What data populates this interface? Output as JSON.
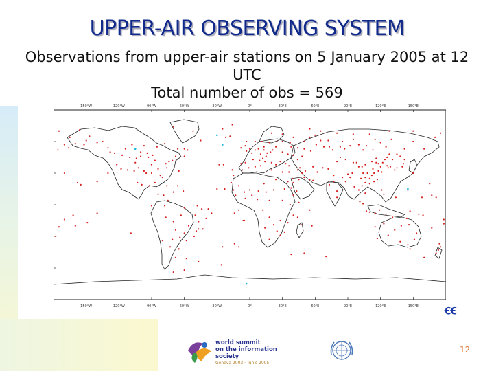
{
  "slide": {
    "title": "UPPER-AIR OBSERVING SYSTEM",
    "subtitle_line1": "Observations from upper-air stations on 5 January 2005 at 12",
    "subtitle_line2": "UTC",
    "subtitle_line3": "Total number of obs = 569",
    "slide_number": "12"
  },
  "map": {
    "projection": "equirectangular",
    "lon_range": [
      -180,
      180
    ],
    "lat_range": [
      -90,
      90
    ],
    "lon_ticks": [
      "150°W",
      "120°W",
      "90°W",
      "60°W",
      "30°W",
      "0°",
      "30°E",
      "60°E",
      "90°E",
      "120°E",
      "150°E"
    ],
    "lat_ticks_left": [
      "60°N",
      "30°N",
      "0°",
      "30°S",
      "60°S"
    ],
    "lat_ticks_right": [
      "60°N",
      "30°N",
      "0°",
      "30°S",
      "60°S"
    ],
    "station_color": "#d62020",
    "highlight_color": "#20b8e0",
    "stations": [
      [
        -150,
        61
      ],
      [
        -165,
        64
      ],
      [
        -156,
        71
      ],
      [
        -147,
        65
      ],
      [
        -135,
        60
      ],
      [
        -124,
        49
      ],
      [
        -122,
        38
      ],
      [
        -118,
        34
      ],
      [
        -112,
        33
      ],
      [
        -105,
        40
      ],
      [
        -97,
        32
      ],
      [
        -95,
        30
      ],
      [
        -90,
        38
      ],
      [
        -87,
        42
      ],
      [
        -84,
        34
      ],
      [
        -80,
        26
      ],
      [
        -77,
        39
      ],
      [
        -74,
        41
      ],
      [
        -71,
        42
      ],
      [
        -68,
        46
      ],
      [
        -100,
        50
      ],
      [
        -94,
        49
      ],
      [
        -114,
        53
      ],
      [
        -108,
        57
      ],
      [
        -97,
        56
      ],
      [
        -85,
        55
      ],
      [
        -78,
        58
      ],
      [
        -66,
        53
      ],
      [
        -60,
        53
      ],
      [
        -117,
        47
      ],
      [
        -110,
        45
      ],
      [
        -104,
        44
      ],
      [
        -100,
        46
      ],
      [
        -93,
        45
      ],
      [
        -89,
        47
      ],
      [
        -102,
        35
      ],
      [
        -106,
        32
      ],
      [
        -90,
        30
      ],
      [
        -82,
        28
      ],
      [
        -76,
        35
      ],
      [
        -99,
        19
      ],
      [
        -103,
        21
      ],
      [
        -92,
        18
      ],
      [
        -87,
        21
      ],
      [
        -84,
        10
      ],
      [
        -79,
        9
      ],
      [
        -76,
        18
      ],
      [
        -66,
        18
      ],
      [
        -61,
        13
      ],
      [
        -70,
        12
      ],
      [
        -75,
        4
      ],
      [
        -60,
        -3
      ],
      [
        -48,
        -1
      ],
      [
        -38,
        -4
      ],
      [
        -35,
        -8
      ],
      [
        -50,
        -10
      ],
      [
        -63,
        -10
      ],
      [
        -78,
        -1
      ],
      [
        -77,
        -12
      ],
      [
        -70,
        -16
      ],
      [
        -47,
        -16
      ],
      [
        -43,
        -23
      ],
      [
        -49,
        -25
      ],
      [
        -51,
        -30
      ],
      [
        -58,
        -34
      ],
      [
        -64,
        -31
      ],
      [
        -68,
        -24
      ],
      [
        -71,
        -33
      ],
      [
        -73,
        -40
      ],
      [
        -68,
        -50
      ],
      [
        -58,
        -51
      ],
      [
        -65,
        -42
      ],
      [
        -60,
        -27
      ],
      [
        -56,
        -20
      ],
      [
        -47,
        -23
      ],
      [
        -40,
        -13
      ],
      [
        -52,
        70
      ],
      [
        -22,
        64
      ],
      [
        -18,
        65
      ],
      [
        -45,
        61
      ],
      [
        -70,
        74
      ],
      [
        -25,
        72
      ],
      [
        -16,
        76
      ],
      [
        -8,
        54
      ],
      [
        -3,
        51
      ],
      [
        0,
        53
      ],
      [
        -4,
        56
      ],
      [
        2,
        49
      ],
      [
        5,
        52
      ],
      [
        8,
        53
      ],
      [
        10,
        48
      ],
      [
        13,
        52
      ],
      [
        16,
        49
      ],
      [
        19,
        50
      ],
      [
        21,
        52
      ],
      [
        24,
        55
      ],
      [
        18,
        59
      ],
      [
        11,
        60
      ],
      [
        5,
        60
      ],
      [
        25,
        60
      ],
      [
        30,
        60
      ],
      [
        13,
        55
      ],
      [
        15,
        46
      ],
      [
        12,
        44
      ],
      [
        -4,
        40
      ],
      [
        -8,
        39
      ],
      [
        3,
        43
      ],
      [
        9,
        42
      ],
      [
        14,
        41
      ],
      [
        20,
        40
      ],
      [
        24,
        38
      ],
      [
        28,
        41
      ],
      [
        33,
        39
      ],
      [
        36,
        37
      ],
      [
        30,
        50
      ],
      [
        35,
        48
      ],
      [
        40,
        47
      ],
      [
        44,
        43
      ],
      [
        38,
        55
      ],
      [
        44,
        54
      ],
      [
        50,
        53
      ],
      [
        48,
        46
      ],
      [
        56,
        51
      ],
      [
        37,
        59
      ],
      [
        50,
        60
      ],
      [
        40,
        64
      ],
      [
        30,
        67
      ],
      [
        20,
        68
      ],
      [
        55,
        64
      ],
      [
        60,
        66
      ],
      [
        65,
        61
      ],
      [
        72,
        61
      ],
      [
        61,
        57
      ],
      [
        68,
        55
      ],
      [
        73,
        55
      ],
      [
        76,
        52
      ],
      [
        83,
        55
      ],
      [
        87,
        53
      ],
      [
        92,
        56
      ],
      [
        85,
        60
      ],
      [
        95,
        62
      ],
      [
        100,
        57
      ],
      [
        104,
        52
      ],
      [
        107,
        56
      ],
      [
        113,
        52
      ],
      [
        115,
        62
      ],
      [
        120,
        59
      ],
      [
        125,
        55
      ],
      [
        130,
        62
      ],
      [
        135,
        48
      ],
      [
        142,
        53
      ],
      [
        150,
        60
      ],
      [
        160,
        53
      ],
      [
        170,
        64
      ],
      [
        110,
        67
      ],
      [
        95,
        67
      ],
      [
        80,
        68
      ],
      [
        128,
        70
      ],
      [
        150,
        70
      ],
      [
        175,
        68
      ],
      [
        65,
        70
      ],
      [
        55,
        72
      ],
      [
        5,
        36
      ],
      [
        -1,
        35
      ],
      [
        10,
        37
      ],
      [
        20,
        33
      ],
      [
        30,
        31
      ],
      [
        -7,
        33
      ],
      [
        -15,
        28
      ],
      [
        -17,
        21
      ],
      [
        -10,
        18
      ],
      [
        0,
        14
      ],
      [
        2,
        9
      ],
      [
        8,
        13
      ],
      [
        -5,
        12
      ],
      [
        15,
        12
      ],
      [
        22,
        14
      ],
      [
        32,
        15
      ],
      [
        38,
        16
      ],
      [
        35,
        22
      ],
      [
        24,
        24
      ],
      [
        13,
        20
      ],
      [
        -15,
        14
      ],
      [
        -13,
        9
      ],
      [
        -4,
        6
      ],
      [
        7,
        5
      ],
      [
        18,
        4
      ],
      [
        30,
        4
      ],
      [
        37,
        0
      ],
      [
        40,
        9
      ],
      [
        45,
        2
      ],
      [
        12,
        -5
      ],
      [
        18,
        -12
      ],
      [
        28,
        -15
      ],
      [
        35,
        -17
      ],
      [
        25,
        -25
      ],
      [
        28,
        -29
      ],
      [
        18,
        -33
      ],
      [
        32,
        -26
      ],
      [
        47,
        -19
      ],
      [
        57,
        -20
      ],
      [
        40,
        -10
      ],
      [
        44,
        -12
      ],
      [
        22,
        -19
      ],
      [
        14,
        -22
      ],
      [
        -6,
        -15
      ],
      [
        -14,
        -8
      ],
      [
        55,
        -5
      ],
      [
        46,
        35
      ],
      [
        51,
        32
      ],
      [
        58,
        36
      ],
      [
        62,
        31
      ],
      [
        67,
        35
      ],
      [
        72,
        34
      ],
      [
        77,
        28
      ],
      [
        73,
        19
      ],
      [
        80,
        13
      ],
      [
        88,
        22
      ],
      [
        77,
        22
      ],
      [
        85,
        26
      ],
      [
        80,
        7
      ],
      [
        92,
        26
      ],
      [
        96,
        17
      ],
      [
        100,
        14
      ],
      [
        103,
        18
      ],
      [
        106,
        11
      ],
      [
        101,
        3
      ],
      [
        104,
        1
      ],
      [
        110,
        -7
      ],
      [
        115,
        -8
      ],
      [
        119,
        -5
      ],
      [
        107,
        -6
      ],
      [
        125,
        -9
      ],
      [
        121,
        14
      ],
      [
        123,
        10
      ],
      [
        114,
        22
      ],
      [
        110,
        20
      ],
      [
        106,
        21
      ],
      [
        117,
        24
      ],
      [
        121,
        31
      ],
      [
        118,
        32
      ],
      [
        114,
        30
      ],
      [
        112,
        28
      ],
      [
        108,
        30
      ],
      [
        104,
        30
      ],
      [
        102,
        25
      ],
      [
        106,
        26
      ],
      [
        110,
        25
      ],
      [
        113,
        34
      ],
      [
        116,
        40
      ],
      [
        118,
        39
      ],
      [
        120,
        36
      ],
      [
        122,
        40
      ],
      [
        124,
        43
      ],
      [
        126,
        45
      ],
      [
        128,
        48
      ],
      [
        116,
        44
      ],
      [
        112,
        41
      ],
      [
        106,
        38
      ],
      [
        103,
        36
      ],
      [
        100,
        36
      ],
      [
        98,
        40
      ],
      [
        95,
        40
      ],
      [
        88,
        43
      ],
      [
        83,
        45
      ],
      [
        80,
        41
      ],
      [
        90,
        29
      ],
      [
        94,
        30
      ],
      [
        126,
        37
      ],
      [
        127,
        35
      ],
      [
        129,
        36
      ],
      [
        133,
        33
      ],
      [
        135,
        35
      ],
      [
        140,
        36
      ],
      [
        141,
        39
      ],
      [
        142,
        43
      ],
      [
        131,
        43
      ],
      [
        138,
        46
      ],
      [
        45,
        24
      ],
      [
        40,
        21
      ],
      [
        43,
        13
      ],
      [
        50,
        26
      ],
      [
        55,
        24
      ],
      [
        58,
        23
      ],
      [
        36,
        31
      ],
      [
        44,
        33
      ],
      [
        48,
        30
      ],
      [
        39,
        25
      ],
      [
        131,
        -12
      ],
      [
        146,
        -19
      ],
      [
        139,
        -20
      ],
      [
        153,
        -27
      ],
      [
        151,
        -33
      ],
      [
        145,
        -38
      ],
      [
        138,
        -35
      ],
      [
        117,
        -32
      ],
      [
        115,
        -21
      ],
      [
        123,
        -18
      ],
      [
        133,
        -24
      ],
      [
        127,
        -29
      ],
      [
        144,
        -13
      ],
      [
        147,
        -42
      ],
      [
        174,
        -37
      ],
      [
        173,
        -43
      ],
      [
        171,
        -46
      ],
      [
        167,
        -22
      ],
      [
        178,
        -18
      ],
      [
        155,
        -9
      ],
      [
        147,
        -6
      ],
      [
        159,
        -10
      ],
      [
        167,
        9
      ],
      [
        158,
        7
      ],
      [
        171,
        7
      ],
      [
        134,
        7
      ],
      [
        145,
        14
      ],
      [
        178,
        -14
      ],
      [
        -158,
        21
      ],
      [
        -155,
        19
      ],
      [
        -162,
        -10
      ],
      [
        -170,
        -14
      ],
      [
        -149,
        -17
      ],
      [
        -140,
        -8
      ],
      [
        -160,
        -20
      ],
      [
        -175,
        -21
      ],
      [
        -176,
        52
      ],
      [
        -178,
        -30
      ],
      [
        -5,
        -15
      ],
      [
        -25,
        -40
      ],
      [
        -14,
        -37
      ],
      [
        -10,
        -40
      ],
      [
        50,
        -46
      ],
      [
        70,
        -49
      ],
      [
        38,
        -47
      ],
      [
        -57,
        52
      ],
      [
        -44,
        -4
      ],
      [
        -30,
        15
      ],
      [
        -23,
        15
      ],
      [
        -24,
        38
      ],
      [
        -16,
        33
      ],
      [
        -28,
        38
      ],
      [
        -65,
        32
      ],
      [
        -60,
        46
      ],
      [
        -47,
        -54
      ],
      [
        -26,
        -57
      ],
      [
        -70,
        -64
      ],
      [
        -60,
        -62
      ],
      [
        -170,
        57
      ],
      [
        -166,
        54
      ],
      [
        -160,
        58
      ],
      [
        -152,
        57
      ],
      [
        -140,
        59
      ],
      [
        -130,
        54
      ],
      [
        -128,
        50
      ],
      [
        -175,
        70
      ],
      [
        175,
        -40
      ],
      [
        160,
        -50
      ],
      [
        -109,
        -27
      ],
      [
        -90,
        -1
      ],
      [
        -80,
        -34
      ],
      [
        -140,
        22
      ],
      [
        -130,
        30
      ],
      [
        -170,
        30
      ],
      [
        150,
        30
      ],
      [
        165,
        20
      ],
      [
        -10,
        -5
      ],
      [
        -3,
        60
      ]
    ],
    "highlights": [
      [
        -30,
        66
      ],
      [
        -25,
        57
      ],
      [
        -105,
        53
      ],
      [
        145,
        15
      ],
      [
        -3,
        -75
      ]
    ]
  }
}
